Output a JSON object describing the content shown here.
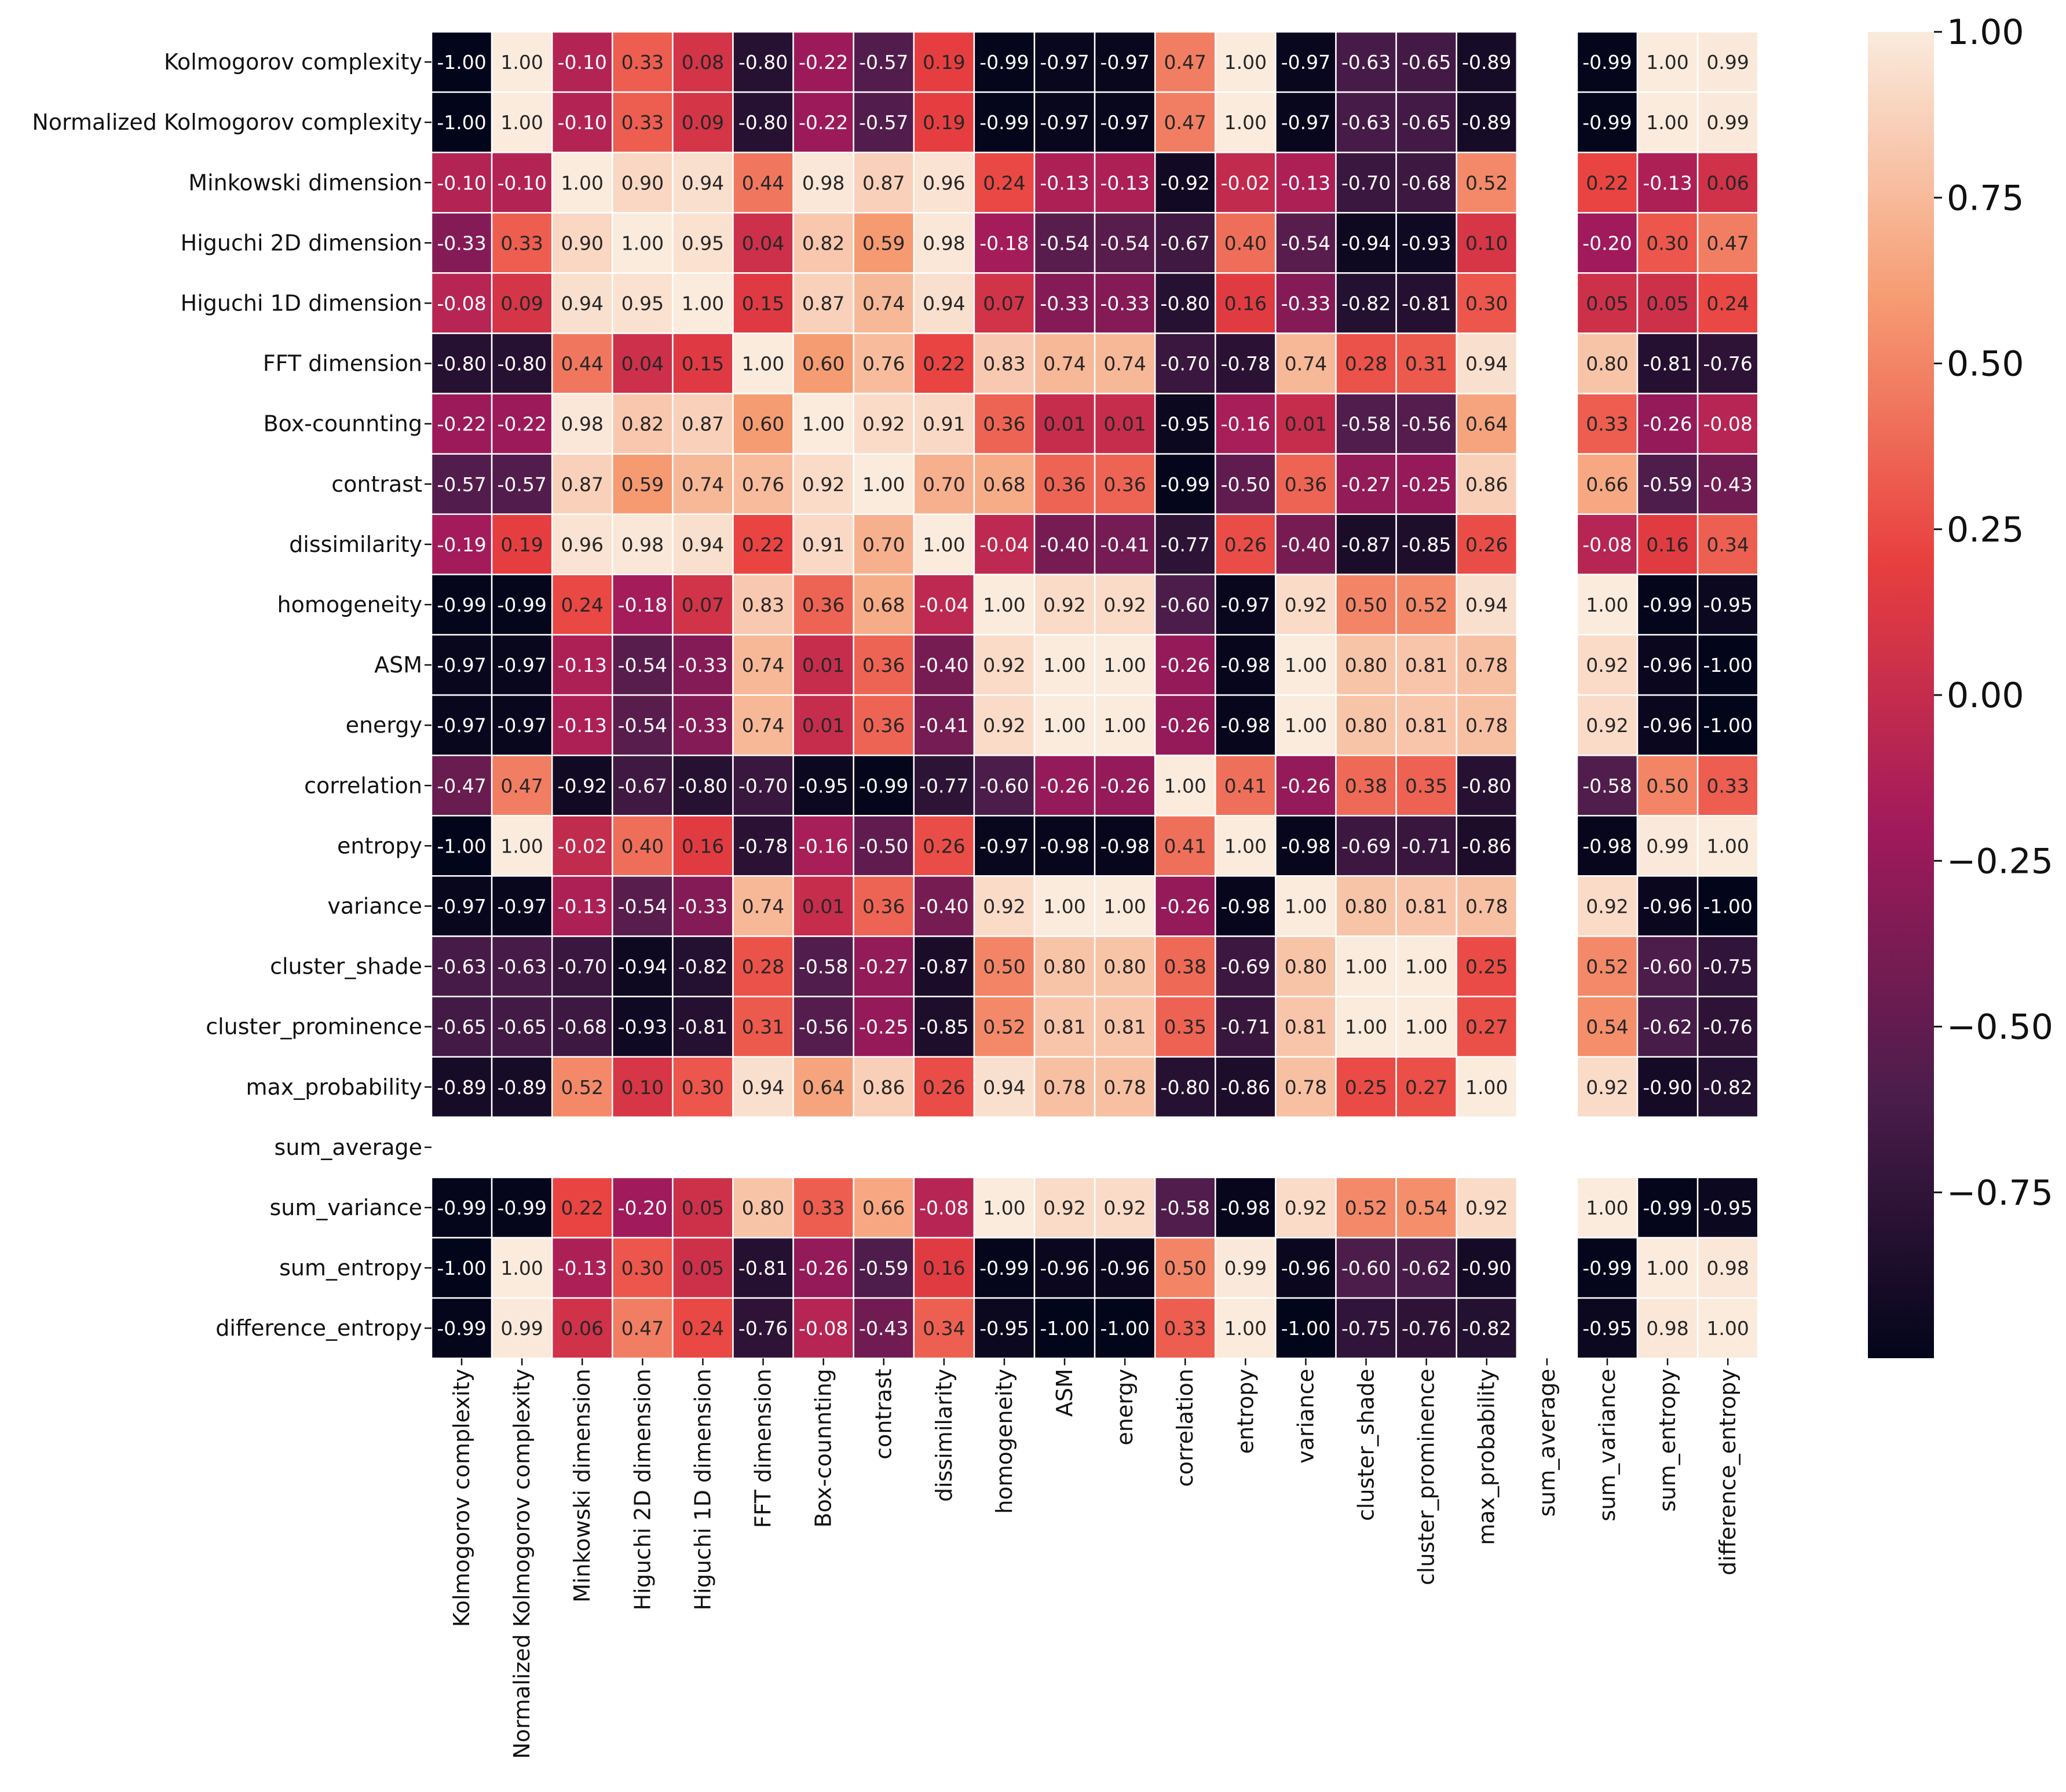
{
  "chart_data": {
    "type": "heatmap",
    "title": "",
    "xlabel": "",
    "ylabel": "",
    "labels": [
      "Kolmogorov complexity",
      "Normalized Kolmogorov complexity",
      "Minkowski dimension",
      "Higuchi 2D dimension",
      "Higuchi 1D dimension",
      "FFT dimension",
      "Box-counnting",
      "contrast",
      "dissimilarity",
      "homogeneity",
      "ASM",
      "energy",
      "correlation",
      "entropy",
      "variance",
      "cluster_shade",
      "cluster_prominence",
      "max_probability",
      "sum_average",
      "sum_variance",
      "sum_entropy",
      "difference_entropy"
    ],
    "matrix": [
      [
        -1.0,
        1.0,
        -0.1,
        0.33,
        0.08,
        -0.8,
        -0.22,
        -0.57,
        0.19,
        -0.99,
        -0.97,
        -0.97,
        0.47,
        1.0,
        -0.97,
        -0.63,
        -0.65,
        -0.89,
        null,
        -0.99,
        1.0,
        0.99
      ],
      [
        -1.0,
        1.0,
        -0.1,
        0.33,
        0.09,
        -0.8,
        -0.22,
        -0.57,
        0.19,
        -0.99,
        -0.97,
        -0.97,
        0.47,
        1.0,
        -0.97,
        -0.63,
        -0.65,
        -0.89,
        null,
        -0.99,
        1.0,
        0.99
      ],
      [
        -0.1,
        -0.1,
        1.0,
        0.9,
        0.94,
        0.44,
        0.98,
        0.87,
        0.96,
        0.24,
        -0.13,
        -0.13,
        -0.92,
        -0.02,
        -0.13,
        -0.7,
        -0.68,
        0.52,
        null,
        0.22,
        -0.13,
        0.06
      ],
      [
        -0.33,
        0.33,
        0.9,
        1.0,
        0.95,
        0.04,
        0.82,
        0.59,
        0.98,
        -0.18,
        -0.54,
        -0.54,
        -0.67,
        0.4,
        -0.54,
        -0.94,
        -0.93,
        0.1,
        null,
        -0.2,
        0.3,
        0.47
      ],
      [
        -0.08,
        0.09,
        0.94,
        0.95,
        1.0,
        0.15,
        0.87,
        0.74,
        0.94,
        0.07,
        -0.33,
        -0.33,
        -0.8,
        0.16,
        -0.33,
        -0.82,
        -0.81,
        0.3,
        null,
        0.05,
        0.05,
        0.24
      ],
      [
        -0.8,
        -0.8,
        0.44,
        0.04,
        0.15,
        1.0,
        0.6,
        0.76,
        0.22,
        0.83,
        0.74,
        0.74,
        -0.7,
        -0.78,
        0.74,
        0.28,
        0.31,
        0.94,
        null,
        0.8,
        -0.81,
        -0.76
      ],
      [
        -0.22,
        -0.22,
        0.98,
        0.82,
        0.87,
        0.6,
        1.0,
        0.92,
        0.91,
        0.36,
        0.01,
        0.01,
        -0.95,
        -0.16,
        0.01,
        -0.58,
        -0.56,
        0.64,
        null,
        0.33,
        -0.26,
        -0.08
      ],
      [
        -0.57,
        -0.57,
        0.87,
        0.59,
        0.74,
        0.76,
        0.92,
        1.0,
        0.7,
        0.68,
        0.36,
        0.36,
        -0.99,
        -0.5,
        0.36,
        -0.27,
        -0.25,
        0.86,
        null,
        0.66,
        -0.59,
        -0.43
      ],
      [
        -0.19,
        0.19,
        0.96,
        0.98,
        0.94,
        0.22,
        0.91,
        0.7,
        1.0,
        -0.04,
        -0.4,
        -0.41,
        -0.77,
        0.26,
        -0.4,
        -0.87,
        -0.85,
        0.26,
        null,
        -0.08,
        0.16,
        0.34
      ],
      [
        -0.99,
        -0.99,
        0.24,
        -0.18,
        0.07,
        0.83,
        0.36,
        0.68,
        -0.04,
        1.0,
        0.92,
        0.92,
        -0.6,
        -0.97,
        0.92,
        0.5,
        0.52,
        0.94,
        null,
        1.0,
        -0.99,
        -0.95
      ],
      [
        -0.97,
        -0.97,
        -0.13,
        -0.54,
        -0.33,
        0.74,
        0.01,
        0.36,
        -0.4,
        0.92,
        1.0,
        1.0,
        -0.26,
        -0.98,
        1.0,
        0.8,
        0.81,
        0.78,
        null,
        0.92,
        -0.96,
        -1.0
      ],
      [
        -0.97,
        -0.97,
        -0.13,
        -0.54,
        -0.33,
        0.74,
        0.01,
        0.36,
        -0.41,
        0.92,
        1.0,
        1.0,
        -0.26,
        -0.98,
        1.0,
        0.8,
        0.81,
        0.78,
        null,
        0.92,
        -0.96,
        -1.0
      ],
      [
        -0.47,
        0.47,
        -0.92,
        -0.67,
        -0.8,
        -0.7,
        -0.95,
        -0.99,
        -0.77,
        -0.6,
        -0.26,
        -0.26,
        1.0,
        0.41,
        -0.26,
        0.38,
        0.35,
        -0.8,
        null,
        -0.58,
        0.5,
        0.33
      ],
      [
        -1.0,
        1.0,
        -0.02,
        0.4,
        0.16,
        -0.78,
        -0.16,
        -0.5,
        0.26,
        -0.97,
        -0.98,
        -0.98,
        0.41,
        1.0,
        -0.98,
        -0.69,
        -0.71,
        -0.86,
        null,
        -0.98,
        0.99,
        1.0
      ],
      [
        -0.97,
        -0.97,
        -0.13,
        -0.54,
        -0.33,
        0.74,
        0.01,
        0.36,
        -0.4,
        0.92,
        1.0,
        1.0,
        -0.26,
        -0.98,
        1.0,
        0.8,
        0.81,
        0.78,
        null,
        0.92,
        -0.96,
        -1.0
      ],
      [
        -0.63,
        -0.63,
        -0.7,
        -0.94,
        -0.82,
        0.28,
        -0.58,
        -0.27,
        -0.87,
        0.5,
        0.8,
        0.8,
        0.38,
        -0.69,
        0.8,
        1.0,
        1.0,
        0.25,
        null,
        0.52,
        -0.6,
        -0.75
      ],
      [
        -0.65,
        -0.65,
        -0.68,
        -0.93,
        -0.81,
        0.31,
        -0.56,
        -0.25,
        -0.85,
        0.52,
        0.81,
        0.81,
        0.35,
        -0.71,
        0.81,
        1.0,
        1.0,
        0.27,
        null,
        0.54,
        -0.62,
        -0.76
      ],
      [
        -0.89,
        -0.89,
        0.52,
        0.1,
        0.3,
        0.94,
        0.64,
        0.86,
        0.26,
        0.94,
        0.78,
        0.78,
        -0.8,
        -0.86,
        0.78,
        0.25,
        0.27,
        1.0,
        null,
        0.92,
        -0.9,
        -0.82
      ],
      [
        null,
        null,
        null,
        null,
        null,
        null,
        null,
        null,
        null,
        null,
        null,
        null,
        null,
        null,
        null,
        null,
        null,
        null,
        null,
        null,
        null,
        null
      ],
      [
        -0.99,
        -0.99,
        0.22,
        -0.2,
        0.05,
        0.8,
        0.33,
        0.66,
        -0.08,
        1.0,
        0.92,
        0.92,
        -0.58,
        -0.98,
        0.92,
        0.52,
        0.54,
        0.92,
        null,
        1.0,
        -0.99,
        -0.95
      ],
      [
        -1.0,
        1.0,
        -0.13,
        0.3,
        0.05,
        -0.81,
        -0.26,
        -0.59,
        0.16,
        -0.99,
        -0.96,
        -0.96,
        0.5,
        0.99,
        -0.96,
        -0.6,
        -0.62,
        -0.9,
        null,
        -0.99,
        1.0,
        0.98
      ],
      [
        -0.99,
        0.99,
        0.06,
        0.47,
        0.24,
        -0.76,
        -0.08,
        -0.43,
        0.34,
        -0.95,
        -1.0,
        -1.0,
        0.33,
        1.0,
        -1.0,
        -0.75,
        -0.76,
        -0.82,
        null,
        -0.95,
        0.98,
        1.0
      ]
    ],
    "vmin": -1.0,
    "vmax": 1.0,
    "colormap": "rocket",
    "colormap_stops": [
      "#03051a",
      "#4c1d4b",
      "#a11a5b",
      "#e83f3f",
      "#f69c73",
      "#faebdd"
    ],
    "cell_border_color": "#ffffff",
    "colorbar": {
      "ticks": [
        1.0,
        0.75,
        0.5,
        0.25,
        0.0,
        -0.25,
        -0.5,
        -0.75
      ],
      "tick_labels": [
        "1.00",
        "0.75",
        "0.50",
        "0.25",
        "0.00",
        "−0.25",
        "−0.50",
        "−0.75"
      ]
    },
    "grid": false,
    "legend": "colorbar-right"
  }
}
